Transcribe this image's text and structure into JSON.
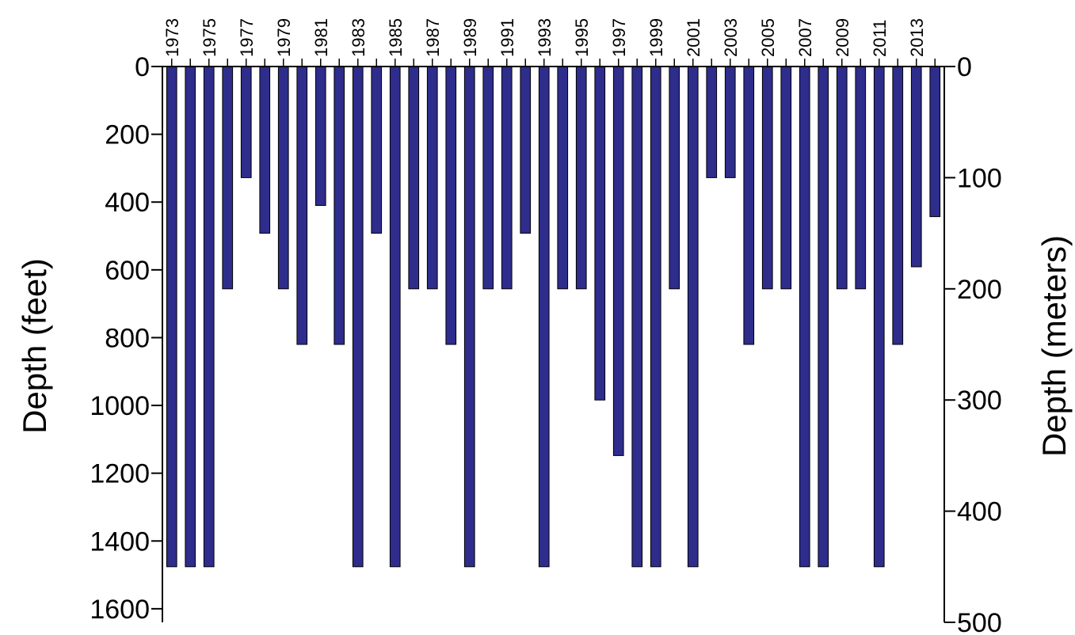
{
  "chart_data": {
    "type": "bar",
    "orientation": "vertical-downward",
    "title": "",
    "ylabel_left": "Depth  (feet)",
    "ylabel_right": "Depth  (meters)",
    "ylim_feet": [
      0,
      1640
    ],
    "ylim_meters": [
      0,
      500
    ],
    "y_ticks_feet": [
      0,
      200,
      400,
      600,
      800,
      1000,
      1200,
      1400,
      1600
    ],
    "y_ticks_meters": [
      0,
      100,
      200,
      300,
      400,
      500
    ],
    "x_tick_labels": [
      "1973",
      "1975",
      "1977",
      "1979",
      "1981",
      "1983",
      "1985",
      "1987",
      "1989",
      "1991",
      "1993",
      "1995",
      "1997",
      "1999",
      "2001",
      "2003",
      "2005",
      "2007",
      "2009",
      "2011",
      "2013"
    ],
    "bar_color": "#2e2d8c",
    "categories": [
      "1973",
      "1974",
      "1975",
      "1976",
      "1977",
      "1978",
      "1979",
      "1980",
      "1981",
      "1982",
      "1983",
      "1984",
      "1985",
      "1986",
      "1987",
      "1988",
      "1989",
      "1990",
      "1991",
      "1992",
      "1993",
      "1994",
      "1995",
      "1996",
      "1997",
      "1998",
      "1999",
      "2000",
      "2001",
      "2002",
      "2003",
      "2004",
      "2005",
      "2006",
      "2007",
      "2008",
      "2009",
      "2010",
      "2011",
      "2012",
      "2013",
      "2014"
    ],
    "values_feet": [
      1476,
      1476,
      1476,
      656,
      328,
      492,
      656,
      820,
      410,
      820,
      1476,
      492,
      1476,
      656,
      656,
      820,
      1476,
      656,
      656,
      492,
      1476,
      656,
      656,
      984,
      1148,
      1476,
      1476,
      656,
      1476,
      328,
      328,
      820,
      656,
      656,
      1476,
      1476,
      656,
      656,
      1476,
      820,
      591,
      443
    ],
    "grid": false,
    "legend": "none"
  }
}
